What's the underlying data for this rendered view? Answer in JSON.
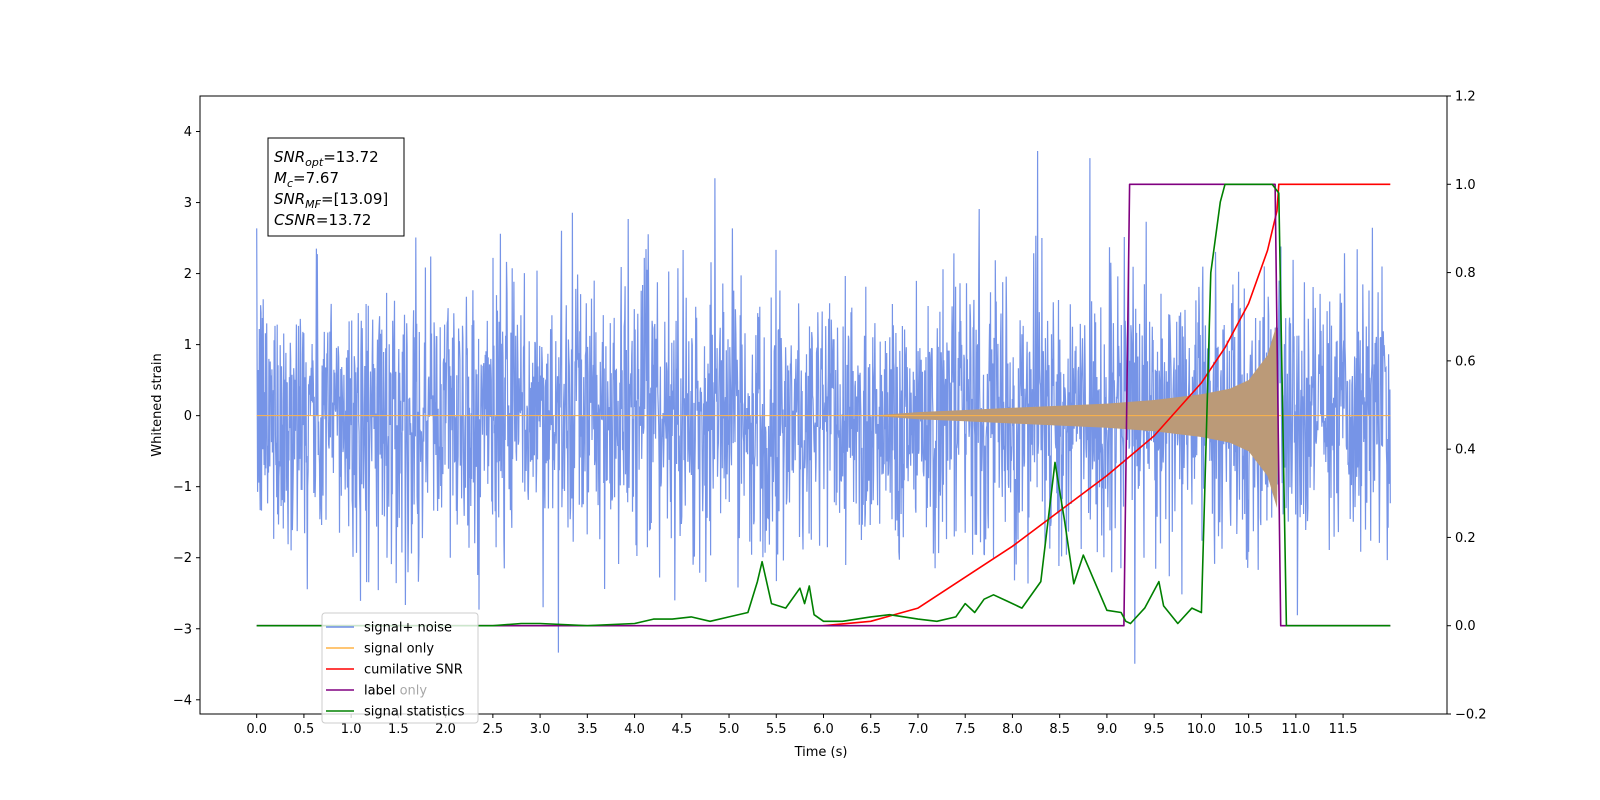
{
  "chart_data": {
    "type": "line",
    "xlabel": "Time (s)",
    "ylabel": "Whitened strain",
    "xlim": [
      -0.6,
      12.6
    ],
    "ylim": [
      -4.2,
      4.5
    ],
    "y2lim": [
      -0.2,
      1.2
    ],
    "x_ticks": [
      "0.0",
      "0.5",
      "1.0",
      "1.5",
      "2.0",
      "2.5",
      "3.0",
      "3.5",
      "4.0",
      "4.5",
      "5.0",
      "5.5",
      "6.0",
      "6.5",
      "7.0",
      "7.5",
      "8.0",
      "8.5",
      "9.0",
      "9.5",
      "10.0",
      "10.5",
      "11.0",
      "11.5"
    ],
    "y_ticks": [
      "−4",
      "−3",
      "−2",
      "−1",
      "0",
      "1",
      "2",
      "3",
      "4"
    ],
    "y2_ticks": [
      "−0.2",
      "0.0",
      "0.2",
      "0.4",
      "0.6",
      "0.8",
      "1.0",
      "1.2"
    ],
    "annotation": [
      {
        "base": "SNR",
        "sub": "opt",
        "value": "=13.72"
      },
      {
        "base": "M",
        "sub": "c",
        "value": "=7.67"
      },
      {
        "base": "SNR",
        "sub": "MF",
        "value": "=[13.09]"
      },
      {
        "base": "CSNR",
        "sub": "",
        "value": "=13.72"
      }
    ],
    "legend": {
      "position": "lower left",
      "entries": [
        "signal+ noise",
        "signal only",
        "cumilative SNR",
        "label",
        "signal statistics"
      ],
      "ghost_entries": [
        "label only"
      ]
    },
    "colors": {
      "noise": "#6f8ee6",
      "signal": "#ffb347",
      "overlap": "#bb9a78",
      "csnr": "#ff0000",
      "label": "#800080",
      "stats": "#008000"
    },
    "series": [
      {
        "name": "signal+ noise",
        "axis": "left",
        "description_points": "Gaussian whitened noise, roughly ±2 with spikes to ±4 over 0–12 s",
        "x_range": [
          0.0,
          12.0
        ],
        "typical_amplitude": 2.3,
        "max_peak": 4.1,
        "min_peak": -3.8
      },
      {
        "name": "signal only",
        "axis": "left",
        "x": [
          0.0,
          6.5,
          7.0,
          7.5,
          8.0,
          8.5,
          9.0,
          9.5,
          10.0,
          10.3,
          10.5,
          10.7,
          10.8,
          10.82,
          12.0
        ],
        "envelope": [
          0.0,
          0.0,
          0.05,
          0.08,
          0.11,
          0.14,
          0.17,
          0.22,
          0.3,
          0.38,
          0.5,
          0.85,
          1.3,
          0.0,
          0.0
        ]
      },
      {
        "name": "cumilative SNR",
        "axis": "right",
        "x": [
          6.0,
          6.5,
          7.0,
          7.5,
          8.0,
          8.5,
          9.0,
          9.5,
          10.0,
          10.25,
          10.5,
          10.7,
          10.8,
          10.82,
          12.0
        ],
        "y": [
          0.0,
          0.01,
          0.04,
          0.11,
          0.18,
          0.26,
          0.34,
          0.43,
          0.55,
          0.63,
          0.73,
          0.85,
          0.94,
          1.0,
          1.0
        ]
      },
      {
        "name": "label",
        "axis": "right",
        "x": [
          0.0,
          9.18,
          9.24,
          10.78,
          10.84,
          12.0
        ],
        "y": [
          0.0,
          0.0,
          1.0,
          1.0,
          0.0,
          0.0
        ]
      },
      {
        "name": "signal statistics",
        "axis": "right",
        "x": [
          0.0,
          2.5,
          2.8,
          3.0,
          3.5,
          4.0,
          4.2,
          4.4,
          4.6,
          4.8,
          5.0,
          5.2,
          5.3,
          5.35,
          5.45,
          5.6,
          5.75,
          5.8,
          5.85,
          5.9,
          6.0,
          6.2,
          6.5,
          6.7,
          7.0,
          7.2,
          7.4,
          7.5,
          7.6,
          7.7,
          7.8,
          7.95,
          8.1,
          8.3,
          8.45,
          8.55,
          8.65,
          8.75,
          8.85,
          9.0,
          9.15,
          9.2,
          9.25,
          9.4,
          9.55,
          9.6,
          9.75,
          9.9,
          10.0,
          10.1,
          10.2,
          10.25,
          10.75,
          10.82,
          10.9,
          12.0
        ],
        "y": [
          0.0,
          0.0,
          0.005,
          0.005,
          0.0,
          0.005,
          0.015,
          0.015,
          0.02,
          0.01,
          0.02,
          0.03,
          0.1,
          0.145,
          0.05,
          0.04,
          0.085,
          0.05,
          0.09,
          0.025,
          0.01,
          0.01,
          0.02,
          0.025,
          0.015,
          0.01,
          0.02,
          0.05,
          0.03,
          0.06,
          0.07,
          0.055,
          0.04,
          0.1,
          0.37,
          0.24,
          0.095,
          0.16,
          0.11,
          0.035,
          0.03,
          0.01,
          0.005,
          0.04,
          0.1,
          0.045,
          0.005,
          0.04,
          0.03,
          0.8,
          0.96,
          1.0,
          1.0,
          0.98,
          0.0,
          0.0
        ]
      }
    ]
  }
}
